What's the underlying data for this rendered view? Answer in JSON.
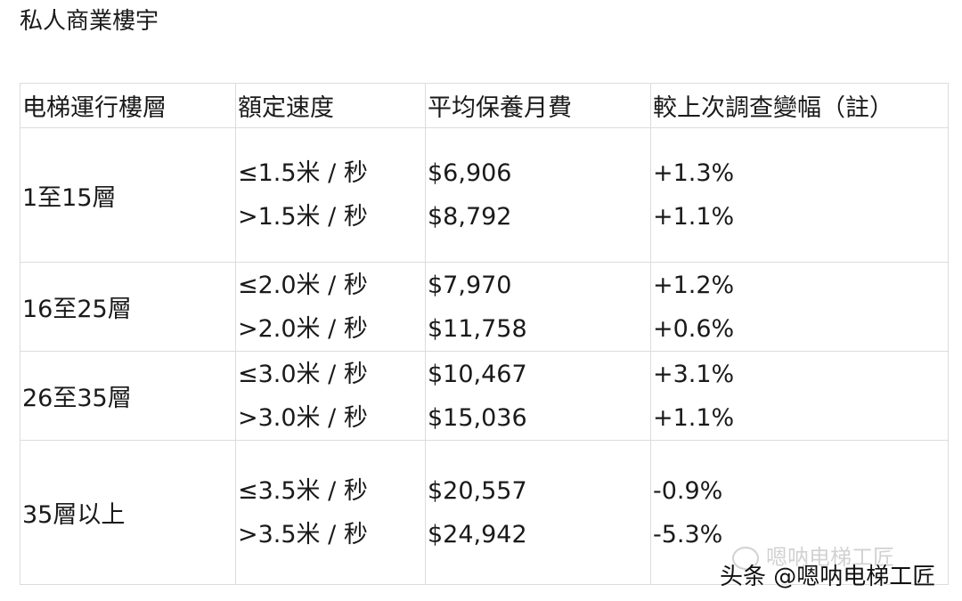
{
  "title": "私人商業樓宇",
  "table": {
    "headers": [
      "电梯運行樓層",
      "額定速度",
      "平均保養月費",
      "較上次調查變幅（註）"
    ],
    "rows": [
      {
        "floors": "1至15層",
        "speeds": [
          "≤1.5米 / 秒",
          ">1.5米 / 秒"
        ],
        "fees": [
          "$6,906",
          "$8,792"
        ],
        "changes": [
          "+1.3%",
          "+1.1%"
        ]
      },
      {
        "floors": "16至25層",
        "speeds": [
          "≤2.0米 / 秒",
          ">2.0米 / 秒"
        ],
        "fees": [
          "$7,970",
          "$11,758"
        ],
        "changes": [
          "+1.2%",
          "+0.6%"
        ]
      },
      {
        "floors": "26至35層",
        "speeds": [
          "≤3.0米 / 秒",
          ">3.0米 / 秒"
        ],
        "fees": [
          "$10,467",
          "$15,036"
        ],
        "changes": [
          "+3.1%",
          "+1.1%"
        ]
      },
      {
        "floors": "35層以上",
        "speeds": [
          "≤3.5米 / 秒",
          ">3.5米 / 秒"
        ],
        "fees": [
          "$20,557",
          "$24,942"
        ],
        "changes": [
          "-0.9%",
          "-5.3%"
        ]
      }
    ]
  },
  "watermark": {
    "faint": "嗯呐电梯工匠",
    "main": "头条 @嗯呐电梯工匠"
  }
}
